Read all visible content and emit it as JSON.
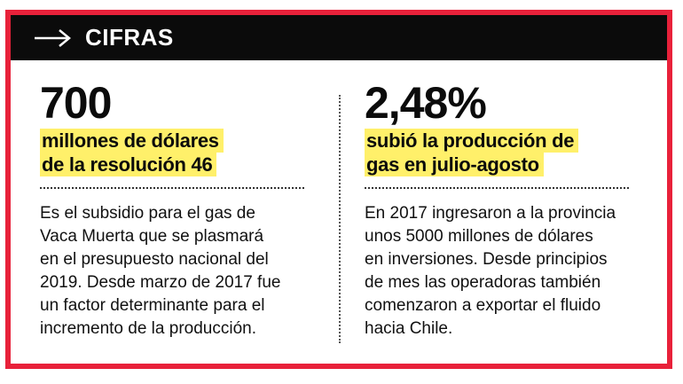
{
  "header": {
    "title": "CIFRAS",
    "icon": "arrow-right-icon"
  },
  "colors": {
    "frame": "#e8213a",
    "header_bg": "#0b0b0b",
    "highlight": "#fff06a"
  },
  "left": {
    "number": "700",
    "caption_lines": [
      "millones de dólares",
      "de la resolución 46"
    ],
    "body_lines": [
      "Es el subsidio para el gas de",
      "Vaca Muerta que se plasmará",
      "en el presupuesto nacional del",
      "2019. Desde marzo de 2017 fue",
      "un factor determinante para el",
      "incremento de la producción."
    ]
  },
  "right": {
    "number": "2,48%",
    "caption_lines": [
      "subió la producción de",
      "gas en julio-agosto"
    ],
    "body_lines": [
      "En 2017 ingresaron a la provincia",
      "unos 5000 millones de dólares",
      "en inversiones. Desde principios",
      "de mes las operadoras también",
      "comenzaron a exportar el fluido",
      "hacia Chile."
    ]
  }
}
